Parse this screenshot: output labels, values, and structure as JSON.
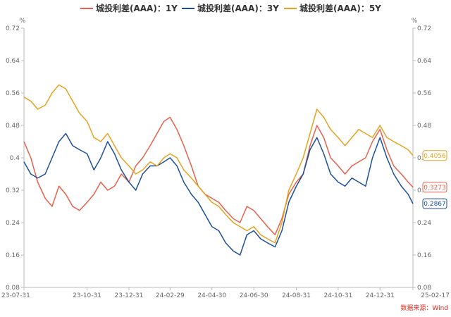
{
  "chart_data": {
    "type": "line",
    "title": "",
    "y_unit_left": "%",
    "y_unit_right": "%",
    "ylim": [
      0.08,
      0.72
    ],
    "y_ticks": [
      0.08,
      0.16,
      0.24,
      0.32,
      0.4,
      0.48,
      0.56,
      0.64,
      0.72
    ],
    "y_tick_labels": [
      "0.08",
      "0.16",
      "0.24",
      "0.32",
      "0.4",
      "0.48",
      "0.56",
      "0.64",
      "0.72"
    ],
    "y_tick_labels_right": [
      "0.08",
      "0.16",
      "0.24",
      "0.32",
      "0.4",
      "0.48",
      "0.56",
      "0.64",
      "0.72"
    ],
    "xlim": [
      "2023-07-31",
      "2025-02-17"
    ],
    "x_ticks": [
      "2023-07-31",
      "2023-10-31",
      "2023-12-31",
      "2024-02-29",
      "2024-04-30",
      "2024-06-30",
      "2024-08-31",
      "2024-10-31",
      "2024-12-31",
      "2025-02-17"
    ],
    "x_tick_labels": [
      "23-07-31",
      "23-10-31",
      "23-12-31",
      "24-02-29",
      "24-04-30",
      "24-06-30",
      "24-08-31",
      "24-10-31",
      "24-12-31",
      "25-02-17"
    ],
    "grid": false,
    "legend_position": "top-center",
    "source": "数据来源：Wind",
    "series": [
      {
        "name": "城投利差(AAA)：1Y",
        "color": "#e8604c",
        "end_value": 0.3273,
        "end_label": "0.3273",
        "points": [
          [
            "2023-07-31",
            0.44
          ],
          [
            "2023-08-10",
            0.4
          ],
          [
            "2023-08-20",
            0.34
          ],
          [
            "2023-08-31",
            0.3
          ],
          [
            "2023-09-10",
            0.28
          ],
          [
            "2023-09-20",
            0.33
          ],
          [
            "2023-09-30",
            0.31
          ],
          [
            "2023-10-10",
            0.28
          ],
          [
            "2023-10-20",
            0.27
          ],
          [
            "2023-10-31",
            0.29
          ],
          [
            "2023-11-10",
            0.31
          ],
          [
            "2023-11-20",
            0.34
          ],
          [
            "2023-11-30",
            0.32
          ],
          [
            "2023-12-10",
            0.33
          ],
          [
            "2023-12-20",
            0.36
          ],
          [
            "2023-12-31",
            0.34
          ],
          [
            "2024-01-10",
            0.38
          ],
          [
            "2024-01-20",
            0.4
          ],
          [
            "2024-01-31",
            0.43
          ],
          [
            "2024-02-10",
            0.46
          ],
          [
            "2024-02-20",
            0.49
          ],
          [
            "2024-02-29",
            0.5
          ],
          [
            "2024-03-10",
            0.47
          ],
          [
            "2024-03-20",
            0.43
          ],
          [
            "2024-03-31",
            0.38
          ],
          [
            "2024-04-10",
            0.33
          ],
          [
            "2024-04-20",
            0.31
          ],
          [
            "2024-04-30",
            0.3
          ],
          [
            "2024-05-10",
            0.29
          ],
          [
            "2024-05-20",
            0.27
          ],
          [
            "2024-05-31",
            0.25
          ],
          [
            "2024-06-10",
            0.24
          ],
          [
            "2024-06-20",
            0.28
          ],
          [
            "2024-06-30",
            0.27
          ],
          [
            "2024-07-10",
            0.25
          ],
          [
            "2024-07-20",
            0.23
          ],
          [
            "2024-07-31",
            0.21
          ],
          [
            "2024-08-10",
            0.25
          ],
          [
            "2024-08-20",
            0.31
          ],
          [
            "2024-08-31",
            0.34
          ],
          [
            "2024-09-10",
            0.36
          ],
          [
            "2024-09-20",
            0.43
          ],
          [
            "2024-09-30",
            0.48
          ],
          [
            "2024-10-10",
            0.45
          ],
          [
            "2024-10-20",
            0.4
          ],
          [
            "2024-10-31",
            0.38
          ],
          [
            "2024-11-10",
            0.36
          ],
          [
            "2024-11-20",
            0.38
          ],
          [
            "2024-11-30",
            0.39
          ],
          [
            "2024-12-10",
            0.4
          ],
          [
            "2024-12-20",
            0.44
          ],
          [
            "2024-12-31",
            0.47
          ],
          [
            "2025-01-10",
            0.42
          ],
          [
            "2025-01-20",
            0.38
          ],
          [
            "2025-01-31",
            0.36
          ],
          [
            "2025-02-10",
            0.34
          ],
          [
            "2025-02-17",
            0.3273
          ]
        ]
      },
      {
        "name": "城投利差(AAA)：3Y",
        "color": "#1c4e9a",
        "end_value": 0.2867,
        "end_label": "0.2867",
        "points": [
          [
            "2023-07-31",
            0.39
          ],
          [
            "2023-08-10",
            0.36
          ],
          [
            "2023-08-20",
            0.35
          ],
          [
            "2023-08-31",
            0.36
          ],
          [
            "2023-09-10",
            0.4
          ],
          [
            "2023-09-20",
            0.44
          ],
          [
            "2023-09-30",
            0.46
          ],
          [
            "2023-10-10",
            0.43
          ],
          [
            "2023-10-20",
            0.42
          ],
          [
            "2023-10-31",
            0.41
          ],
          [
            "2023-11-10",
            0.37
          ],
          [
            "2023-11-20",
            0.4
          ],
          [
            "2023-11-30",
            0.44
          ],
          [
            "2023-12-10",
            0.41
          ],
          [
            "2023-12-20",
            0.37
          ],
          [
            "2023-12-31",
            0.34
          ],
          [
            "2024-01-10",
            0.32
          ],
          [
            "2024-01-20",
            0.36
          ],
          [
            "2024-01-31",
            0.38
          ],
          [
            "2024-02-10",
            0.38
          ],
          [
            "2024-02-20",
            0.39
          ],
          [
            "2024-02-29",
            0.4
          ],
          [
            "2024-03-10",
            0.38
          ],
          [
            "2024-03-20",
            0.34
          ],
          [
            "2024-03-31",
            0.31
          ],
          [
            "2024-04-10",
            0.29
          ],
          [
            "2024-04-20",
            0.26
          ],
          [
            "2024-04-30",
            0.23
          ],
          [
            "2024-05-10",
            0.22
          ],
          [
            "2024-05-20",
            0.19
          ],
          [
            "2024-05-31",
            0.17
          ],
          [
            "2024-06-10",
            0.16
          ],
          [
            "2024-06-20",
            0.21
          ],
          [
            "2024-06-30",
            0.22
          ],
          [
            "2024-07-10",
            0.2
          ],
          [
            "2024-07-20",
            0.19
          ],
          [
            "2024-07-31",
            0.18
          ],
          [
            "2024-08-10",
            0.22
          ],
          [
            "2024-08-20",
            0.29
          ],
          [
            "2024-08-31",
            0.33
          ],
          [
            "2024-09-10",
            0.36
          ],
          [
            "2024-09-20",
            0.42
          ],
          [
            "2024-09-30",
            0.45
          ],
          [
            "2024-10-10",
            0.41
          ],
          [
            "2024-10-20",
            0.36
          ],
          [
            "2024-10-31",
            0.34
          ],
          [
            "2024-11-10",
            0.33
          ],
          [
            "2024-11-20",
            0.35
          ],
          [
            "2024-11-30",
            0.34
          ],
          [
            "2024-12-10",
            0.33
          ],
          [
            "2024-12-20",
            0.4
          ],
          [
            "2024-12-31",
            0.45
          ],
          [
            "2025-01-10",
            0.4
          ],
          [
            "2025-01-20",
            0.36
          ],
          [
            "2025-01-31",
            0.33
          ],
          [
            "2025-02-10",
            0.31
          ],
          [
            "2025-02-17",
            0.2867
          ]
        ]
      },
      {
        "name": "城投利差(AAA)：5Y",
        "color": "#e6a21e",
        "end_value": 0.4056,
        "end_label": "0.4056",
        "points": [
          [
            "2023-07-31",
            0.55
          ],
          [
            "2023-08-10",
            0.54
          ],
          [
            "2023-08-20",
            0.52
          ],
          [
            "2023-08-31",
            0.53
          ],
          [
            "2023-09-10",
            0.56
          ],
          [
            "2023-09-20",
            0.58
          ],
          [
            "2023-09-30",
            0.57
          ],
          [
            "2023-10-10",
            0.54
          ],
          [
            "2023-10-20",
            0.51
          ],
          [
            "2023-10-31",
            0.49
          ],
          [
            "2023-11-10",
            0.45
          ],
          [
            "2023-11-20",
            0.44
          ],
          [
            "2023-11-30",
            0.46
          ],
          [
            "2023-12-10",
            0.43
          ],
          [
            "2023-12-20",
            0.4
          ],
          [
            "2023-12-31",
            0.38
          ],
          [
            "2024-01-10",
            0.36
          ],
          [
            "2024-01-20",
            0.37
          ],
          [
            "2024-01-31",
            0.39
          ],
          [
            "2024-02-10",
            0.38
          ],
          [
            "2024-02-20",
            0.4
          ],
          [
            "2024-02-29",
            0.41
          ],
          [
            "2024-03-10",
            0.4
          ],
          [
            "2024-03-20",
            0.37
          ],
          [
            "2024-03-31",
            0.35
          ],
          [
            "2024-04-10",
            0.33
          ],
          [
            "2024-04-20",
            0.31
          ],
          [
            "2024-04-30",
            0.29
          ],
          [
            "2024-05-10",
            0.28
          ],
          [
            "2024-05-20",
            0.26
          ],
          [
            "2024-05-31",
            0.24
          ],
          [
            "2024-06-10",
            0.23
          ],
          [
            "2024-06-20",
            0.22
          ],
          [
            "2024-06-30",
            0.23
          ],
          [
            "2024-07-10",
            0.21
          ],
          [
            "2024-07-20",
            0.2
          ],
          [
            "2024-07-31",
            0.19
          ],
          [
            "2024-08-10",
            0.24
          ],
          [
            "2024-08-20",
            0.32
          ],
          [
            "2024-08-31",
            0.36
          ],
          [
            "2024-09-10",
            0.4
          ],
          [
            "2024-09-20",
            0.46
          ],
          [
            "2024-09-30",
            0.52
          ],
          [
            "2024-10-10",
            0.5
          ],
          [
            "2024-10-20",
            0.47
          ],
          [
            "2024-10-31",
            0.45
          ],
          [
            "2024-11-10",
            0.43
          ],
          [
            "2024-11-20",
            0.45
          ],
          [
            "2024-11-30",
            0.47
          ],
          [
            "2024-12-10",
            0.46
          ],
          [
            "2024-12-20",
            0.45
          ],
          [
            "2024-12-31",
            0.48
          ],
          [
            "2025-01-10",
            0.45
          ],
          [
            "2025-01-20",
            0.44
          ],
          [
            "2025-01-31",
            0.43
          ],
          [
            "2025-02-10",
            0.42
          ],
          [
            "2025-02-17",
            0.4056
          ]
        ]
      }
    ]
  }
}
